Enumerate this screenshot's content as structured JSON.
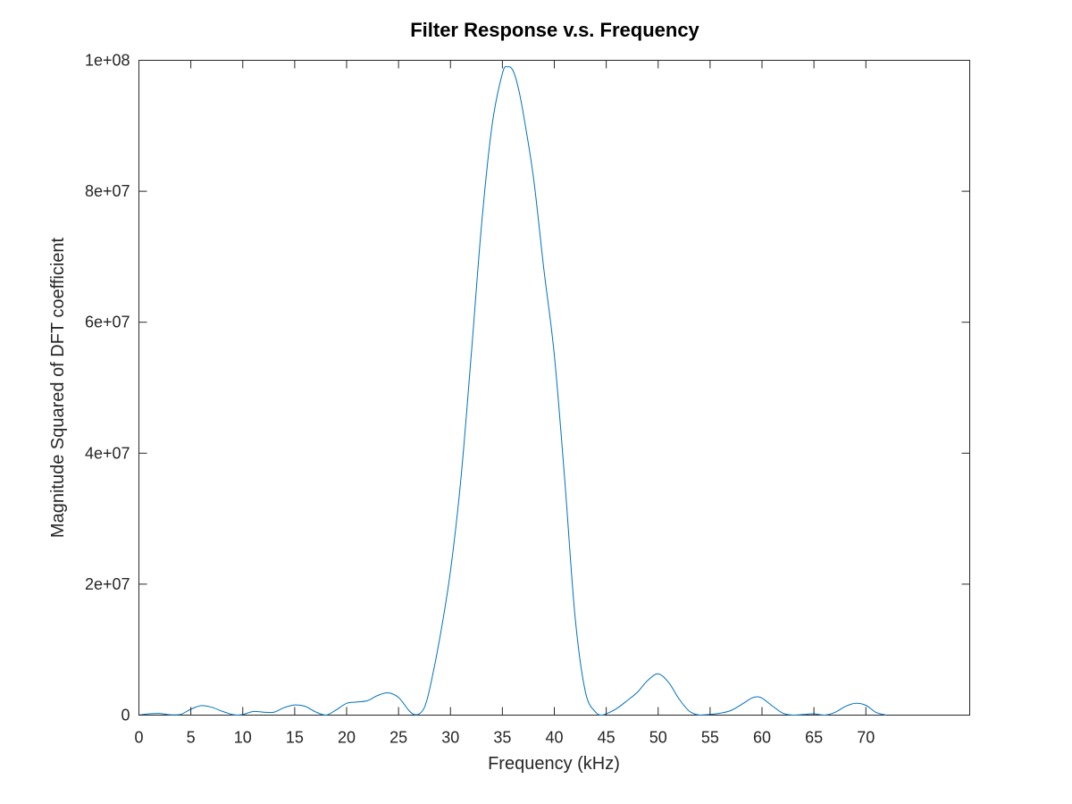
{
  "chart_data": {
    "type": "line",
    "title": "Filter Response v.s. Frequency",
    "xlabel": "Frequency (kHz)",
    "ylabel": "Magnitude Squared of DFT coefficient",
    "xlim": [
      0,
      80
    ],
    "ylim": [
      0,
      100000000
    ],
    "xticks": [
      0,
      5,
      10,
      15,
      20,
      25,
      30,
      35,
      40,
      45,
      50,
      55,
      60,
      65,
      70
    ],
    "xtick_labels": [
      "0",
      "5",
      "10",
      "15",
      "20",
      "25",
      "30",
      "35",
      "40",
      "45",
      "50",
      "55",
      "60",
      "65",
      "70"
    ],
    "yticks": [
      0,
      20000000,
      40000000,
      60000000,
      80000000,
      100000000
    ],
    "ytick_labels": [
      "0",
      "2e+07",
      "4e+07",
      "6e+07",
      "8e+07",
      "1e+08"
    ],
    "grid": false,
    "series": [
      {
        "color": "#0072BD",
        "x": [
          0,
          1,
          2,
          3,
          4,
          5,
          6,
          7,
          8,
          9,
          9.5,
          10,
          11,
          12,
          13,
          14,
          15,
          16,
          17,
          18,
          19,
          20,
          21,
          22,
          23,
          24,
          25,
          26,
          26.5,
          27,
          27.5,
          28,
          29,
          30,
          31,
          32,
          33,
          34,
          35,
          35.5,
          36,
          36.5,
          37,
          38,
          39,
          40,
          41,
          42,
          43,
          44,
          44.5,
          45,
          46,
          47,
          48,
          49,
          50,
          51,
          52,
          53,
          54,
          55,
          56,
          57,
          58,
          59,
          59.5,
          60,
          61,
          62,
          63,
          64,
          65,
          66,
          67,
          68,
          69,
          70,
          71,
          72
        ],
        "y": [
          0,
          200000,
          250000,
          50000,
          100000,
          900000,
          1450000,
          1200000,
          600000,
          80000,
          0,
          80000,
          550000,
          450000,
          450000,
          1150000,
          1550000,
          1350000,
          500000,
          0,
          800000,
          1800000,
          2000000,
          2200000,
          3000000,
          3400000,
          2700000,
          700000,
          100000,
          200000,
          1200000,
          4000000,
          12000000,
          22000000,
          36000000,
          55000000,
          75000000,
          90000000,
          98000000,
          99000000,
          98500000,
          96000000,
          92000000,
          82000000,
          68000000,
          55000000,
          36000000,
          15000000,
          3500000,
          400000,
          0,
          200000,
          1000000,
          2200000,
          3500000,
          5300000,
          6300000,
          5000000,
          2500000,
          600000,
          0,
          100000,
          300000,
          700000,
          1600000,
          2600000,
          2800000,
          2600000,
          1400000,
          300000,
          0,
          100000,
          200000,
          0,
          400000,
          1300000,
          1800000,
          1500000,
          400000,
          0
        ]
      }
    ]
  }
}
